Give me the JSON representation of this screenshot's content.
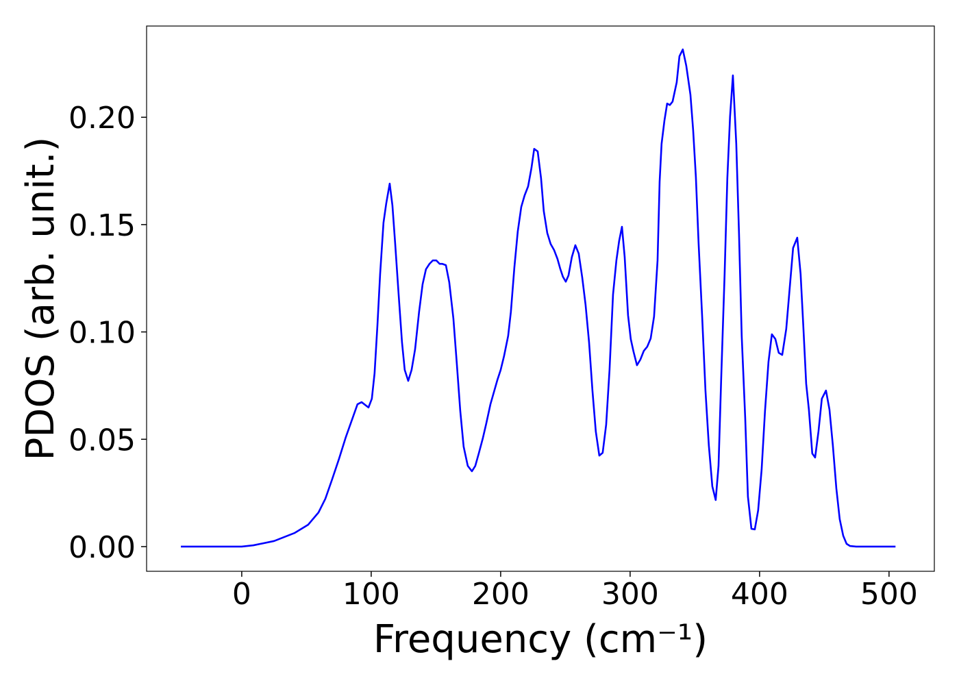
{
  "chart_data": {
    "type": "line",
    "xlabel": "Frequency (cm⁻¹)",
    "ylabel": "PDOS (arb. unit.)",
    "xlim": [
      -73.5,
      535
    ],
    "ylim": [
      -0.0115,
      0.2425
    ],
    "xticks": [
      0,
      100,
      200,
      300,
      400,
      500
    ],
    "yticks": [
      {
        "value": 0,
        "label": "0.00"
      },
      {
        "value": 0.05,
        "label": "0.05"
      },
      {
        "value": 0.1,
        "label": "0.10"
      },
      {
        "value": 0.15,
        "label": "0.15"
      },
      {
        "value": 0.2,
        "label": "0.20"
      }
    ],
    "grid": false,
    "series": [
      {
        "color": "#0000ff",
        "x": [
          -47,
          0,
          9,
          25,
          41,
          51.3,
          59.3,
          64.6,
          69.8,
          75.1,
          80.4,
          85.7,
          89.4,
          92.6,
          97.9,
          100.5,
          102.6,
          104.8,
          106.9,
          109.5,
          111.6,
          114.3,
          116.4,
          118.5,
          121.2,
          123.8,
          125.9,
          128.6,
          131.2,
          133.9,
          137.0,
          139.7,
          142.3,
          145.0,
          147.6,
          150.3,
          152.9,
          155.0,
          157.7,
          160.3,
          163.5,
          166.1,
          168.8,
          171.4,
          174.6,
          177.8,
          180.4,
          183.1,
          186.2,
          188.9,
          192.1,
          197.4,
          200.0,
          202.6,
          205.8,
          207.9,
          210.6,
          213.2,
          215.9,
          218.5,
          221.2,
          223.8,
          225.9,
          228.6,
          231.2,
          233.3,
          236.0,
          238.6,
          241.3,
          243.9,
          246.0,
          248.1,
          250.3,
          252.4,
          255.0,
          257.7,
          260.3,
          263.0,
          265.6,
          268.3,
          270.9,
          273.5,
          276.2,
          278.8,
          281.5,
          284.1,
          286.8,
          289.4,
          291.5,
          293.7,
          295.8,
          298.4,
          300.5,
          302.6,
          305.3,
          307.9,
          310.6,
          313.2,
          315.9,
          318.5,
          321.2,
          322.8,
          324.3,
          326.5,
          328.6,
          330.7,
          332.8,
          336.0,
          338.1,
          340.7,
          343.4,
          346.6,
          348.7,
          350.8,
          352.9,
          355.6,
          358.2,
          360.8,
          363.5,
          366.1,
          368.3,
          370.4,
          373.0,
          375.1,
          377.2,
          379.4,
          382.0,
          384.1,
          386.2,
          388.9,
          391.0,
          393.7,
          396.3,
          398.9,
          401.6,
          404.2,
          406.9,
          409.5,
          412.2,
          414.8,
          417.5,
          420.6,
          423.3,
          425.9,
          429.1,
          431.7,
          433.9,
          436.0,
          438.1,
          440.7,
          442.9,
          445.5,
          448.1,
          451.3,
          454.0,
          456.6,
          459.3,
          461.9,
          464.6,
          467.2,
          469.8,
          474.6,
          505
        ],
        "values": [
          0,
          0,
          0.0006,
          0.0026,
          0.0064,
          0.0102,
          0.0159,
          0.0223,
          0.0313,
          0.0408,
          0.051,
          0.06,
          0.0663,
          0.0673,
          0.0648,
          0.0689,
          0.0807,
          0.103,
          0.127,
          0.1509,
          0.1598,
          0.1691,
          0.1589,
          0.1413,
          0.1174,
          0.0951,
          0.0823,
          0.0772,
          0.0823,
          0.0919,
          0.1094,
          0.1222,
          0.1292,
          0.1317,
          0.1333,
          0.1333,
          0.1317,
          0.1317,
          0.1311,
          0.1231,
          0.1062,
          0.0855,
          0.0632,
          0.0466,
          0.0376,
          0.0351,
          0.0376,
          0.0434,
          0.0504,
          0.0574,
          0.0663,
          0.0775,
          0.0823,
          0.0887,
          0.0982,
          0.1094,
          0.1301,
          0.1467,
          0.1582,
          0.1636,
          0.1678,
          0.1764,
          0.1853,
          0.1841,
          0.1716,
          0.1563,
          0.1461,
          0.141,
          0.1381,
          0.134,
          0.1295,
          0.1257,
          0.1234,
          0.1263,
          0.1349,
          0.1404,
          0.1365,
          0.1254,
          0.1126,
          0.0951,
          0.0727,
          0.0536,
          0.0424,
          0.0437,
          0.0568,
          0.0823,
          0.1174,
          0.1333,
          0.1423,
          0.149,
          0.1349,
          0.1078,
          0.0967,
          0.0909,
          0.0845,
          0.0871,
          0.0912,
          0.0931,
          0.097,
          0.1072,
          0.1333,
          0.17,
          0.1876,
          0.1984,
          0.2064,
          0.2057,
          0.2073,
          0.2163,
          0.2284,
          0.2316,
          0.2239,
          0.2105,
          0.1939,
          0.1722,
          0.1413,
          0.1078,
          0.0727,
          0.0472,
          0.0281,
          0.0217,
          0.0376,
          0.0791,
          0.127,
          0.1716,
          0.2003,
          0.2195,
          0.1876,
          0.1461,
          0.0982,
          0.06,
          0.0233,
          0.0083,
          0.008,
          0.0169,
          0.036,
          0.0632,
          0.0861,
          0.0989,
          0.0967,
          0.0903,
          0.0893,
          0.1014,
          0.1206,
          0.1391,
          0.1439,
          0.127,
          0.1014,
          0.0759,
          0.0638,
          0.0434,
          0.0415,
          0.0536,
          0.0689,
          0.0727,
          0.0638,
          0.0472,
          0.0271,
          0.0128,
          0.0051,
          0.0013,
          0.0003,
          0,
          0
        ]
      }
    ]
  }
}
